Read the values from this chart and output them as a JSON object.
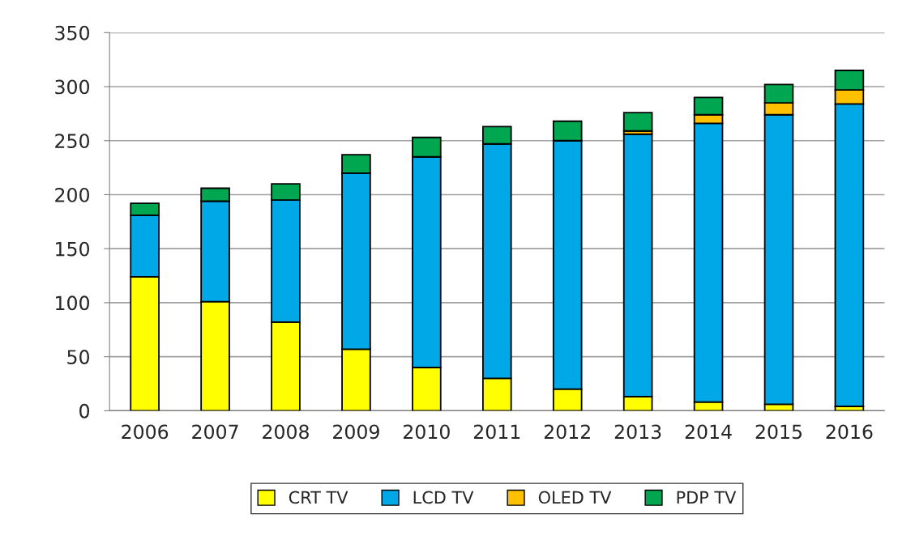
{
  "chart_data": {
    "type": "bar",
    "stacked": true,
    "categories": [
      "2006",
      "2007",
      "2008",
      "2009",
      "2010",
      "2011",
      "2012",
      "2013",
      "2014",
      "2015",
      "2016"
    ],
    "series": [
      {
        "name": "CRT TV",
        "color": "#ffff00",
        "values": [
          124,
          101,
          82,
          57,
          40,
          30,
          20,
          13,
          8,
          6,
          4
        ]
      },
      {
        "name": "LCD TV",
        "color": "#00a8e8",
        "values": [
          57,
          93,
          113,
          163,
          195,
          217,
          230,
          243,
          258,
          268,
          280
        ]
      },
      {
        "name": "OLED TV",
        "color": "#ffc000",
        "values": [
          null,
          null,
          null,
          null,
          null,
          null,
          null,
          3,
          8,
          11,
          13
        ]
      },
      {
        "name": "PDP TV",
        "color": "#00a650",
        "values": [
          11,
          12,
          15,
          17,
          18,
          16,
          18,
          17,
          16,
          17,
          18
        ]
      }
    ],
    "ylim": [
      0,
      350
    ],
    "yticks": [
      0,
      50,
      100,
      150,
      200,
      250,
      300,
      350
    ],
    "grid": "y",
    "legend": "bottom"
  }
}
